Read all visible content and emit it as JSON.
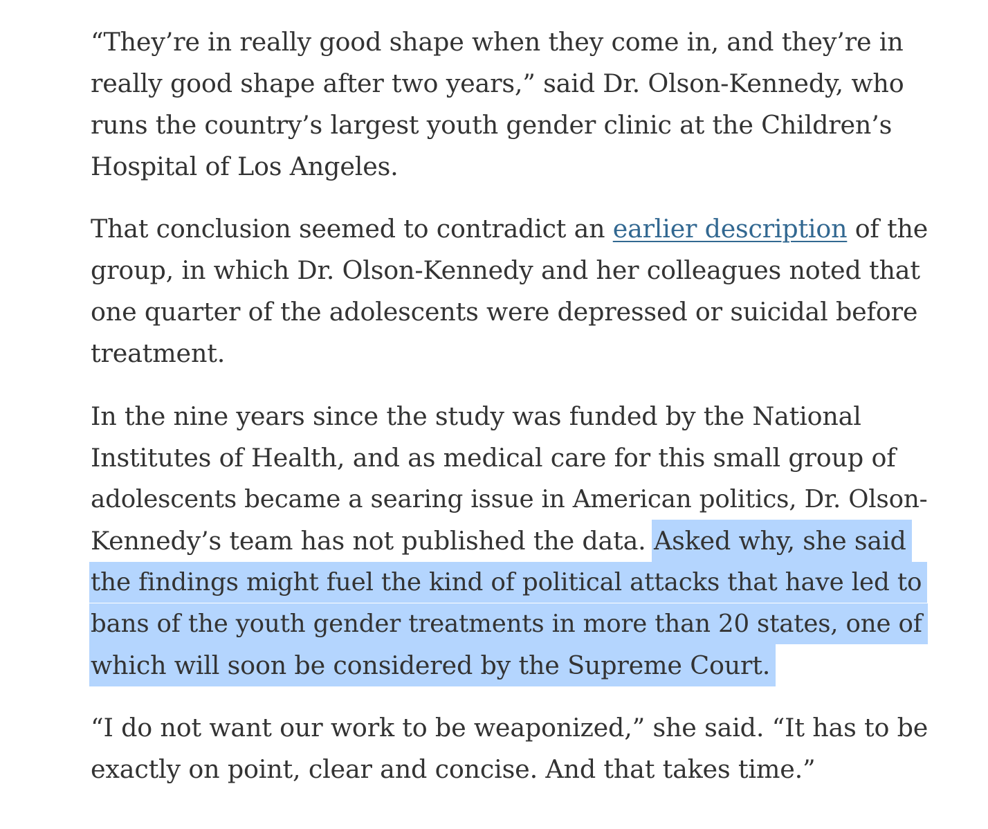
{
  "paragraphs": {
    "p1": {
      "lines": [
        "“They’re in really good shape when they come in, and they’re in",
        "really good shape after two years,” said Dr. Olson-Kennedy, who",
        "runs the country’s largest youth gender clinic at the Children’s",
        "Hospital of Los Angeles."
      ]
    },
    "p2": {
      "line1_before": "That conclusion seemed to contradict an ",
      "link_text": "earlier description",
      "line1_after": " of the",
      "lines": [
        "group, in which Dr. Olson-Kennedy and her colleagues noted that",
        "one quarter of the adolescents were depressed or suicidal before",
        "treatment."
      ]
    },
    "p3": {
      "lines": [
        "In the nine years since the study was funded by the National",
        "Institutes of Health, and as medical care for this small group of",
        "adolescents became a searing issue in American politics, Dr. Olson-"
      ],
      "line4_plain": "Kennedy’s team has not published the data. ",
      "highlighted": [
        "Asked why, she said",
        "the findings might fuel the kind of political attacks that have led to",
        "bans of the youth gender treatments in more than 20 states, one of",
        "which will soon be considered by the Supreme Court."
      ]
    },
    "p4": {
      "lines": [
        "“I do not want our work to be weaponized,” she said. “It has to be",
        "exactly on point, clear and concise. And that takes time.”"
      ]
    }
  },
  "colors": {
    "text": "#333333",
    "link": "#326891",
    "selection": "#b4d5fe"
  }
}
